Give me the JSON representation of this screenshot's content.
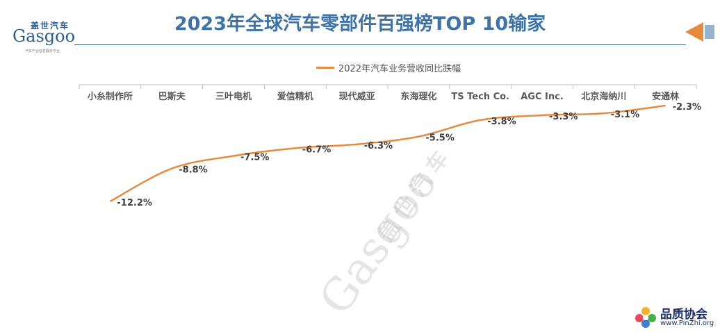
{
  "header": {
    "title": "2023年全球汽车零部件百强榜TOP 10输家"
  },
  "logo": {
    "cn": "盖世汽车",
    "en": "Gasgoo",
    "tagline": "汽车产业信息服务平台"
  },
  "watermark": {
    "cn": "盖世汽车",
    "en": "Gasgoo"
  },
  "footer_badge": {
    "cn": "品质协会",
    "url": "www.PinZhi.org"
  },
  "colors": {
    "title": "#3f73a6",
    "line": "#e58a3f",
    "rule": "#2c5c8c"
  },
  "chart_data": {
    "type": "line",
    "title": "",
    "legend": "2022年汽车业务营收同比跌幅",
    "legend_position": "top",
    "x_axis_position": "top",
    "categories": [
      "小糸制作所",
      "巴斯夫",
      "三叶电机",
      "爱信精机",
      "现代威亚",
      "东海理化",
      "TS Tech Co.",
      "AGC Inc.",
      "北京海纳川",
      "安通林"
    ],
    "series": [
      {
        "name": "2022年汽车业务营收同比跌幅",
        "values": [
          -12.2,
          -8.8,
          -7.5,
          -6.7,
          -6.3,
          -5.5,
          -3.8,
          -3.3,
          -3.1,
          -2.3
        ],
        "labels": [
          "-12.2%",
          "-8.8%",
          "-7.5%",
          "-6.7%",
          "-6.3%",
          "-5.5%",
          "-3.8%",
          "-3.3%",
          "-3.1%",
          "-2.3%"
        ]
      }
    ],
    "ylim": [
      -12.2,
      -2.3
    ],
    "grid": false
  }
}
